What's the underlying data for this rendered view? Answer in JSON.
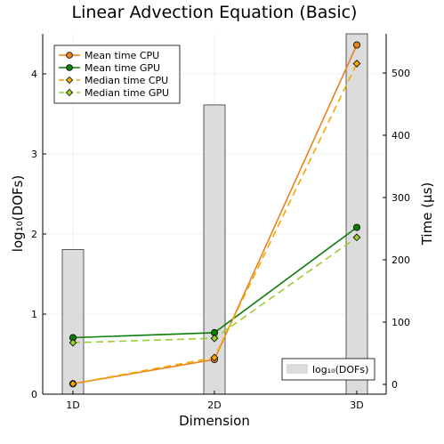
{
  "chart_data": {
    "type": "bar+line",
    "title": "Linear Advection Equation (Basic)",
    "xlabel": "Dimension",
    "ylabel_left": "log₁₀(DOFs)",
    "ylabel_right": "Time (µs)",
    "categories": [
      "1D",
      "2D",
      "3D"
    ],
    "ylim_left": [
      0,
      4.5
    ],
    "yticks_left": [
      "0",
      "1",
      "2",
      "3",
      "4"
    ],
    "ylim_right": [
      -15,
      560
    ],
    "yticks_right": [
      "0",
      "100",
      "200",
      "300",
      "400",
      "500"
    ],
    "bars": {
      "name": "log₁₀(DOFs)",
      "values": [
        1.806,
        3.612,
        4.516
      ],
      "color": "#dcdcdc"
    },
    "series": [
      {
        "name": "Mean time CPU",
        "values": [
          1.0,
          40.0,
          545.0
        ],
        "color": "#e8821e",
        "style": "solid",
        "marker": "circle"
      },
      {
        "name": "Mean time GPU",
        "values": [
          75.0,
          83.0,
          252.0
        ],
        "color": "#0b7d0b",
        "style": "solid",
        "marker": "circle"
      },
      {
        "name": "Median time CPU",
        "values": [
          1.0,
          43.0,
          515.0
        ],
        "color": "#f5a800",
        "style": "dashed",
        "marker": "diamond"
      },
      {
        "name": "Median time GPU",
        "values": [
          67.0,
          74.0,
          236.0
        ],
        "color": "#9acd32",
        "style": "dashed",
        "marker": "diamond"
      }
    ],
    "legend_top": "top-left",
    "legend_bottom": "bottom-right",
    "grid": true
  }
}
